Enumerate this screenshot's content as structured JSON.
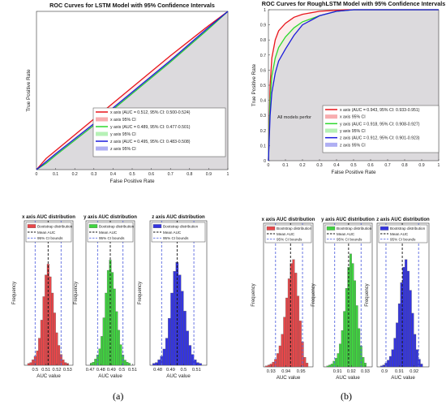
{
  "figure": {
    "panel_a_label": "(a)",
    "panel_b_label": "(b)"
  },
  "colors": {
    "red": "#e8141b",
    "green": "#2ed82e",
    "blue": "#1a1adc",
    "hist_red": "#e8474a",
    "hist_green": "#3fd43f",
    "hist_blue": "#3434e0",
    "ci_line": "#5a6ae0"
  },
  "chart_data": [
    {
      "id": "roc_a",
      "type": "line",
      "title": "ROC Curves for LSTM Model with 95% Confidence Intervals",
      "xlabel": "False Positive Rate",
      "ylabel": "True Positive Rate",
      "xlim": [
        0,
        1
      ],
      "ylim": [
        0,
        1
      ],
      "grid": false,
      "legend": "bottom-right",
      "xticks": [
        "0",
        "0.1",
        "0.2",
        "0.3",
        "0.4",
        "0.5",
        "0.6",
        "0.7",
        "0.8",
        "0.9",
        "1"
      ],
      "legend_entries": [
        "x axis (AUC = 0.512, 95% CI: 0.500-0.524)",
        "x axis 95% CI",
        "y axis (AUC = 0.489, 95% CI: 0.477-0.501)",
        "y axis 95% CI",
        "z axis (AUC = 0.495, 95% CI: 0.483-0.508)",
        "z axis 95% CI"
      ],
      "series": [
        {
          "name": "x axis (AUC = 0.512, 95% CI: 0.500-0.524)",
          "color": "red",
          "x": [
            0,
            0.05,
            0.1,
            0.3,
            0.5,
            0.7,
            0.9,
            1
          ],
          "y": [
            0,
            0.07,
            0.12,
            0.32,
            0.52,
            0.72,
            0.91,
            1
          ]
        },
        {
          "name": "y axis (AUC = 0.489, 95% CI: 0.477-0.501)",
          "color": "green",
          "x": [
            0,
            0.05,
            0.1,
            0.3,
            0.5,
            0.7,
            0.9,
            1
          ],
          "y": [
            0,
            0.04,
            0.09,
            0.28,
            0.48,
            0.68,
            0.89,
            1
          ]
        },
        {
          "name": "z axis (AUC = 0.495, 95% CI: 0.483-0.508)",
          "color": "blue",
          "x": [
            0,
            0.05,
            0.1,
            0.3,
            0.5,
            0.7,
            0.9,
            1
          ],
          "y": [
            0,
            0.05,
            0.1,
            0.29,
            0.49,
            0.69,
            0.9,
            1
          ]
        }
      ]
    },
    {
      "id": "roc_b",
      "type": "line",
      "title": "ROC Curves for RoughLSTM Model with 95% Confidence Intervals",
      "xlabel": "False Positive Rate",
      "ylabel": "True Positive Rate",
      "xlim": [
        0,
        1
      ],
      "ylim": [
        0,
        1
      ],
      "grid": false,
      "legend": "bottom-right",
      "xticks": [
        "0",
        "0.1",
        "0.2",
        "0.3",
        "0.4",
        "0.5",
        "0.6",
        "0.7",
        "0.8",
        "0.9",
        "1"
      ],
      "yticks": [
        "0",
        "0.1",
        "0.2",
        "0.3",
        "0.4",
        "0.5",
        "0.6",
        "0.7",
        "0.8",
        "0.9",
        "1"
      ],
      "annotation": "All models perfor",
      "legend_entries": [
        "x axis (AUC = 0.943, 95% CI: 0.933-0.951)",
        "x axis 95% CI",
        "y axis (AUC = 0.918, 95% CI: 0.908-0.927)",
        "y axis 95% CI",
        "z axis (AUC = 0.912, 95% CI: 0.901-0.923)",
        "z axis 95% CI"
      ],
      "series": [
        {
          "name": "x axis (AUC = 0.943, 95% CI: 0.933-0.951)",
          "color": "red",
          "x": [
            0,
            0.01,
            0.02,
            0.04,
            0.06,
            0.1,
            0.15,
            0.2,
            0.3,
            0.45,
            1
          ],
          "y": [
            0,
            0.5,
            0.68,
            0.8,
            0.86,
            0.91,
            0.95,
            0.97,
            0.99,
            1,
            1
          ]
        },
        {
          "name": "y axis (AUC = 0.918, 95% CI: 0.908-0.927)",
          "color": "green",
          "x": [
            0,
            0.01,
            0.02,
            0.04,
            0.06,
            0.1,
            0.15,
            0.2,
            0.3,
            0.4,
            0.5,
            1
          ],
          "y": [
            0,
            0.4,
            0.56,
            0.68,
            0.75,
            0.82,
            0.88,
            0.92,
            0.96,
            0.99,
            1,
            1
          ]
        },
        {
          "name": "z axis (AUC = 0.912, 95% CI: 0.901-0.923)",
          "color": "blue",
          "x": [
            0,
            0.01,
            0.02,
            0.04,
            0.06,
            0.1,
            0.15,
            0.2,
            0.3,
            0.4,
            0.5,
            1
          ],
          "y": [
            0,
            0.3,
            0.45,
            0.58,
            0.66,
            0.74,
            0.83,
            0.9,
            0.96,
            0.99,
            1,
            1
          ]
        }
      ]
    },
    {
      "id": "hist_a_x",
      "type": "bar",
      "title": "x axis AUC distribution",
      "xlabel": "AUC value",
      "ylabel": "Frequency",
      "xlim": [
        0.49,
        0.535
      ],
      "ylim": [
        0,
        160
      ],
      "xticks": [
        "0.5",
        "0.51",
        "0.52",
        "0.53"
      ],
      "xticks_at": [
        0.5,
        0.51,
        0.52,
        0.53
      ],
      "legend_entries": [
        "Bootstrap distribution",
        "Mean AUC",
        "95% CI bounds"
      ],
      "mean": 0.512,
      "ci": [
        0.5,
        0.524
      ],
      "color": "red",
      "bins": [
        0.494,
        0.496,
        0.498,
        0.5,
        0.502,
        0.504,
        0.506,
        0.508,
        0.51,
        0.512,
        0.514,
        0.516,
        0.518,
        0.52,
        0.522,
        0.524,
        0.526,
        0.528,
        0.53
      ],
      "counts": [
        2,
        3,
        6,
        10,
        16,
        30,
        50,
        76,
        100,
        112,
        98,
        80,
        58,
        36,
        22,
        12,
        6,
        3,
        2
      ]
    },
    {
      "id": "hist_a_y",
      "type": "bar",
      "title": "y axis AUC distribution",
      "xlabel": "AUC value",
      "ylabel": "Frequency",
      "xlim": [
        0.466,
        0.512
      ],
      "ylim": [
        0,
        140
      ],
      "xticks": [
        "0.47",
        "0.48",
        "0.49",
        "0.5",
        "0.51"
      ],
      "xticks_at": [
        0.47,
        0.48,
        0.49,
        0.5,
        0.51
      ],
      "legend_entries": [
        "Bootstrap distribution",
        "Mean AUC",
        "95% CI bounds"
      ],
      "mean": 0.489,
      "ci": [
        0.477,
        0.501
      ],
      "color": "green",
      "bins": [
        0.471,
        0.473,
        0.475,
        0.477,
        0.479,
        0.481,
        0.483,
        0.485,
        0.487,
        0.489,
        0.491,
        0.493,
        0.495,
        0.497,
        0.499,
        0.501,
        0.503,
        0.505,
        0.507
      ],
      "counts": [
        2,
        3,
        6,
        10,
        16,
        28,
        46,
        70,
        92,
        102,
        90,
        74,
        52,
        34,
        20,
        10,
        5,
        3,
        2
      ]
    },
    {
      "id": "hist_a_z",
      "type": "bar",
      "title": "z axis AUC distribution",
      "xlabel": "AUC value",
      "ylabel": "Frequency",
      "xlim": [
        0.474,
        0.518
      ],
      "ylim": [
        0,
        160
      ],
      "xticks": [
        "0.48",
        "0.49",
        "0.5",
        "0.51"
      ],
      "xticks_at": [
        0.48,
        0.49,
        0.5,
        0.51
      ],
      "legend_entries": [
        "Bootstrap distribution",
        "Mean AUC",
        "95% CI bounds"
      ],
      "mean": 0.495,
      "ci": [
        0.483,
        0.508
      ],
      "color": "blue",
      "bins": [
        0.477,
        0.479,
        0.481,
        0.483,
        0.485,
        0.487,
        0.489,
        0.491,
        0.493,
        0.495,
        0.497,
        0.499,
        0.501,
        0.503,
        0.505,
        0.507,
        0.509,
        0.511,
        0.513
      ],
      "counts": [
        2,
        3,
        6,
        10,
        18,
        30,
        52,
        80,
        104,
        114,
        100,
        82,
        60,
        38,
        22,
        12,
        6,
        3,
        2
      ]
    },
    {
      "id": "hist_b_x",
      "type": "bar",
      "title": "x axis AUC distribution",
      "xlabel": "AUC value",
      "ylabel": "Frequency",
      "xlim": [
        0.925,
        0.958
      ],
      "ylim": [
        0,
        150
      ],
      "xticks": [
        "0.93",
        "0.94",
        "0.95"
      ],
      "xticks_at": [
        0.93,
        0.94,
        0.95
      ],
      "legend_entries": [
        "Bootstrap distribution",
        "Mean AUC",
        "95% CI bounds"
      ],
      "mean": 0.943,
      "ci": [
        0.933,
        0.951
      ],
      "color": "red",
      "bins": [
        0.927,
        0.9285,
        0.93,
        0.9315,
        0.933,
        0.9345,
        0.936,
        0.9375,
        0.939,
        0.9405,
        0.942,
        0.9435,
        0.945,
        0.9465,
        0.948,
        0.9495,
        0.951,
        0.9525,
        0.954
      ],
      "counts": [
        1,
        2,
        3,
        5,
        8,
        14,
        22,
        34,
        52,
        72,
        92,
        108,
        112,
        98,
        74,
        48,
        26,
        10,
        4
      ]
    },
    {
      "id": "hist_b_y",
      "type": "bar",
      "title": "y axis AUC distribution",
      "xlabel": "AUC value",
      "ylabel": "Frequency",
      "xlim": [
        0.9,
        0.935
      ],
      "ylim": [
        0,
        150
      ],
      "xticks": [
        "0.91",
        "0.92",
        "0.93"
      ],
      "xticks_at": [
        0.91,
        0.92,
        0.93
      ],
      "legend_entries": [
        "Bootstrap distribution",
        "Mean AUC",
        "95% CI bounds"
      ],
      "mean": 0.918,
      "ci": [
        0.908,
        0.927
      ],
      "color": "green",
      "bins": [
        0.903,
        0.9045,
        0.906,
        0.9075,
        0.909,
        0.9105,
        0.912,
        0.9135,
        0.915,
        0.9165,
        0.918,
        0.9195,
        0.921,
        0.9225,
        0.924,
        0.9255,
        0.927,
        0.9285,
        0.93
      ],
      "counts": [
        1,
        2,
        3,
        6,
        9,
        14,
        24,
        38,
        58,
        82,
        104,
        118,
        108,
        90,
        64,
        40,
        22,
        10,
        4
      ]
    },
    {
      "id": "hist_b_z",
      "type": "bar",
      "title": "z axis AUC distribution",
      "xlabel": "AUC value",
      "ylabel": "Frequency",
      "xlim": [
        0.895,
        0.93
      ],
      "ylim": [
        0,
        150
      ],
      "xticks": [
        "0.9",
        "0.91",
        "0.92"
      ],
      "xticks_at": [
        0.9,
        0.91,
        0.92
      ],
      "legend_entries": [
        "Bootstrap distribution",
        "Mean AUC",
        "95% CI bounds"
      ],
      "mean": 0.912,
      "ci": [
        0.901,
        0.923
      ],
      "color": "blue",
      "bins": [
        0.898,
        0.8995,
        0.901,
        0.9025,
        0.904,
        0.9055,
        0.907,
        0.9085,
        0.91,
        0.9115,
        0.913,
        0.9145,
        0.916,
        0.9175,
        0.919,
        0.9205,
        0.922,
        0.9235,
        0.925
      ],
      "counts": [
        1,
        2,
        4,
        7,
        11,
        18,
        30,
        46,
        66,
        88,
        104,
        112,
        100,
        80,
        56,
        34,
        18,
        8,
        3
      ]
    }
  ]
}
